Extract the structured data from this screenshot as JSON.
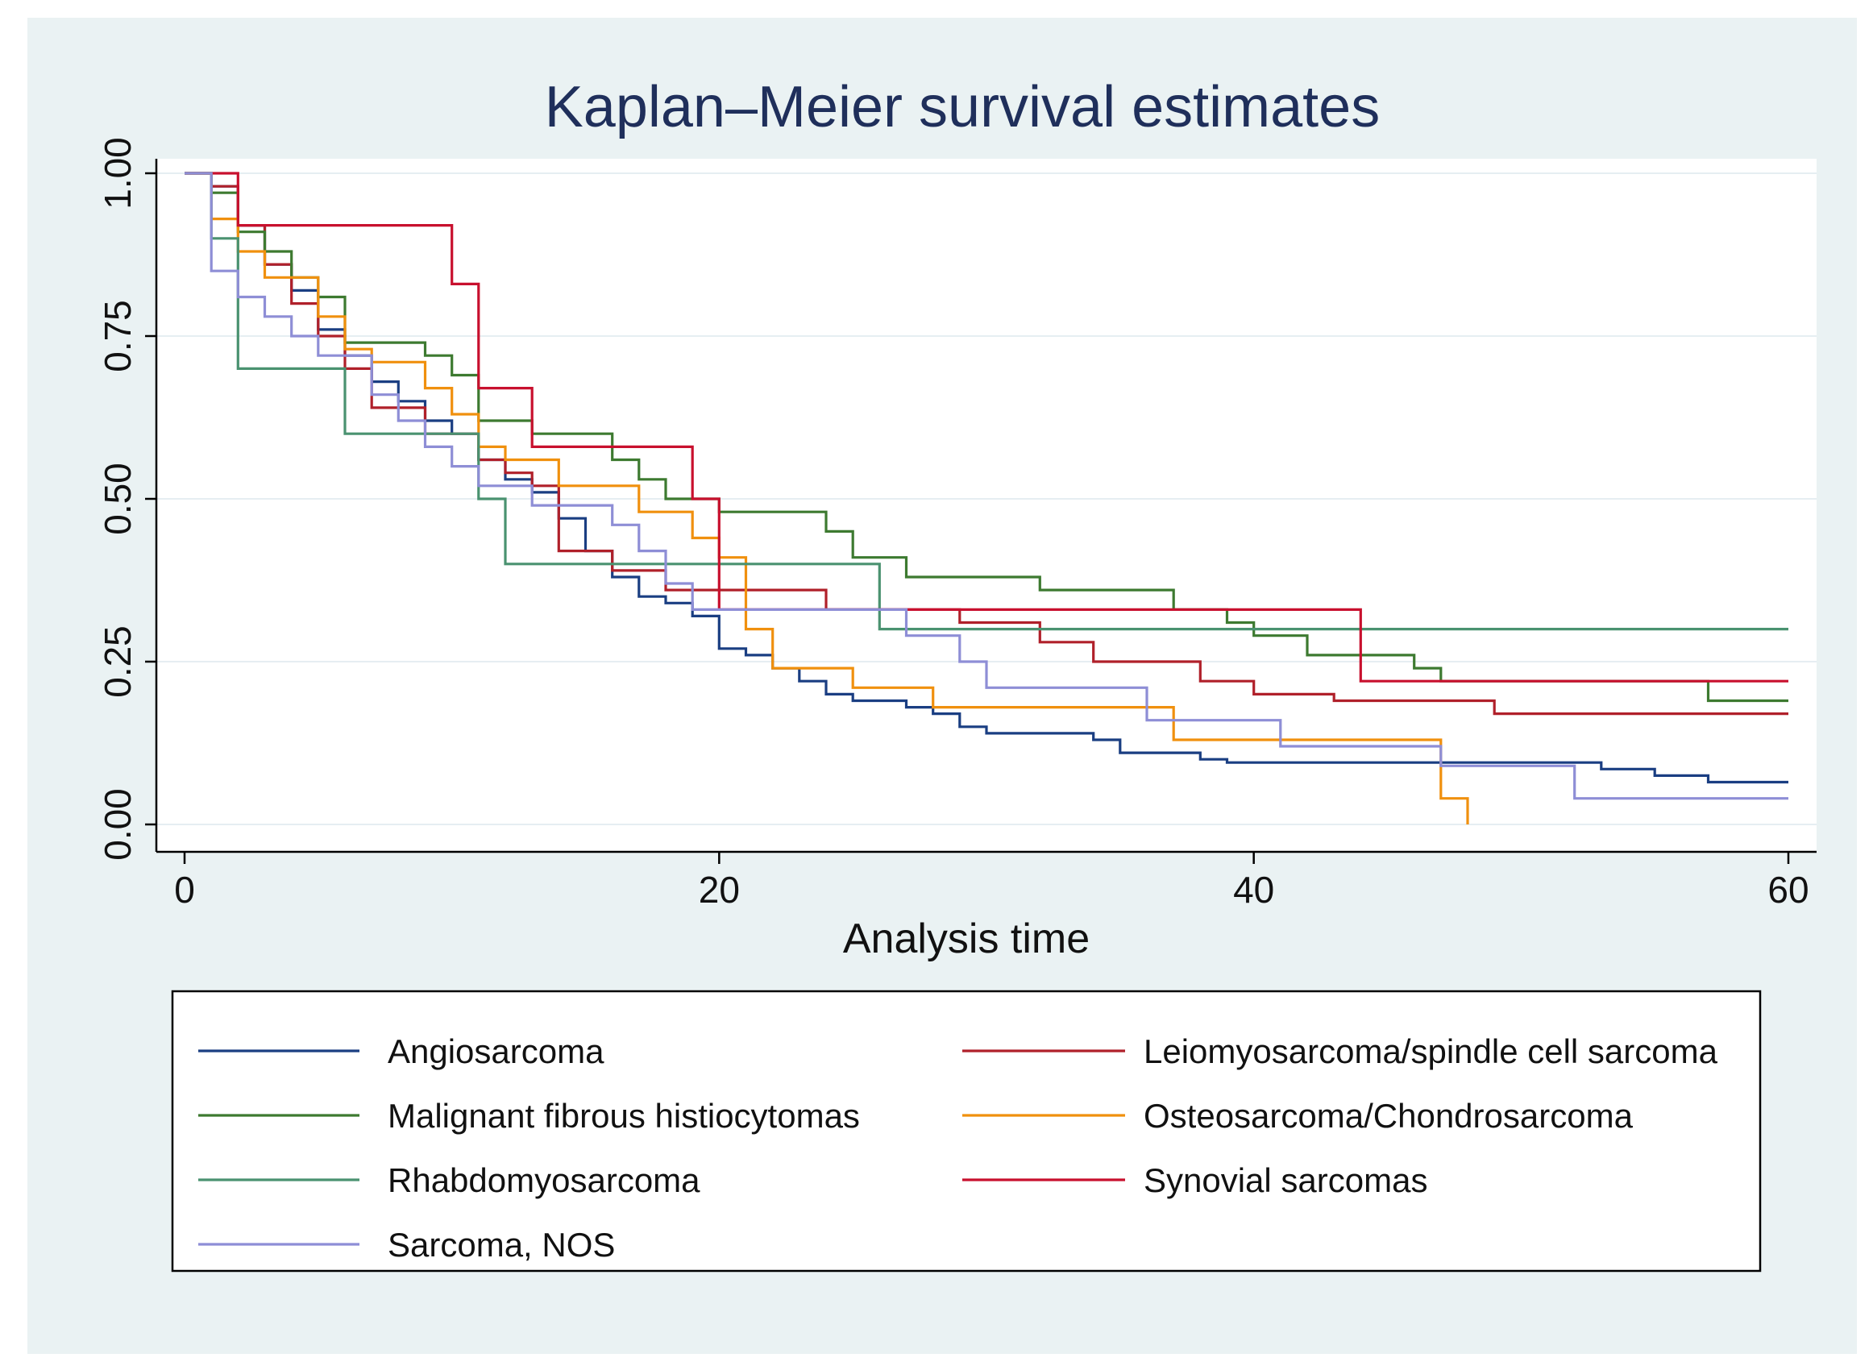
{
  "chart_data": {
    "type": "line",
    "subtype": "step",
    "title": "Kaplan–Meier survival estimates",
    "xlabel": "Analysis time",
    "ylabel": "",
    "xlim": [
      0,
      60
    ],
    "ylim": [
      0,
      1
    ],
    "x_ticks": [
      0,
      20,
      40,
      60
    ],
    "y_ticks": [
      0,
      0.25,
      0.5,
      0.75,
      1
    ],
    "x_tick_labels": [
      "0",
      "20",
      "40",
      "60"
    ],
    "y_tick_labels": [
      "0.00",
      "0.25",
      "0.50",
      "0.75",
      "1.00"
    ],
    "grid": true,
    "legend_position": "bottom",
    "legend_columns": 2,
    "series": [
      {
        "name": "Angiosarcoma",
        "color": "#1a3e82",
        "points": [
          [
            0,
            1
          ],
          [
            1,
            1
          ],
          [
            1,
            0.98
          ],
          [
            2,
            0.98
          ],
          [
            2,
            0.92
          ],
          [
            3,
            0.92
          ],
          [
            3,
            0.86
          ],
          [
            4,
            0.86
          ],
          [
            4,
            0.82
          ],
          [
            5,
            0.82
          ],
          [
            5,
            0.76
          ],
          [
            6,
            0.76
          ],
          [
            6,
            0.72
          ],
          [
            7,
            0.72
          ],
          [
            7,
            0.68
          ],
          [
            8,
            0.68
          ],
          [
            8,
            0.65
          ],
          [
            9,
            0.65
          ],
          [
            9,
            0.62
          ],
          [
            10,
            0.62
          ],
          [
            10,
            0.6
          ],
          [
            11,
            0.6
          ],
          [
            11,
            0.56
          ],
          [
            12,
            0.56
          ],
          [
            12,
            0.53
          ],
          [
            13,
            0.53
          ],
          [
            13,
            0.51
          ],
          [
            14,
            0.51
          ],
          [
            14,
            0.47
          ],
          [
            15,
            0.47
          ],
          [
            15,
            0.42
          ],
          [
            16,
            0.42
          ],
          [
            16,
            0.38
          ],
          [
            17,
            0.38
          ],
          [
            17,
            0.35
          ],
          [
            18,
            0.35
          ],
          [
            18,
            0.34
          ],
          [
            19,
            0.34
          ],
          [
            19,
            0.32
          ],
          [
            20,
            0.32
          ],
          [
            20,
            0.27
          ],
          [
            21,
            0.27
          ],
          [
            21,
            0.26
          ],
          [
            22,
            0.26
          ],
          [
            22,
            0.24
          ],
          [
            23,
            0.24
          ],
          [
            23,
            0.22
          ],
          [
            24,
            0.22
          ],
          [
            24,
            0.2
          ],
          [
            25,
            0.2
          ],
          [
            25,
            0.19
          ],
          [
            27,
            0.19
          ],
          [
            27,
            0.18
          ],
          [
            28,
            0.18
          ],
          [
            28,
            0.17
          ],
          [
            29,
            0.17
          ],
          [
            29,
            0.15
          ],
          [
            30,
            0.15
          ],
          [
            30,
            0.14
          ],
          [
            34,
            0.14
          ],
          [
            34,
            0.13
          ],
          [
            35,
            0.13
          ],
          [
            35,
            0.11
          ],
          [
            38,
            0.11
          ],
          [
            38,
            0.1
          ],
          [
            39,
            0.1
          ],
          [
            39,
            0.095
          ],
          [
            53,
            0.095
          ],
          [
            53,
            0.085
          ],
          [
            55,
            0.085
          ],
          [
            55,
            0.075
          ],
          [
            57,
            0.075
          ],
          [
            57,
            0.065
          ],
          [
            60,
            0.065
          ]
        ]
      },
      {
        "name": "Leiomyosarcoma/spindle cell sarcoma",
        "color": "#b0202a",
        "points": [
          [
            0,
            1
          ],
          [
            1,
            1
          ],
          [
            1,
            0.98
          ],
          [
            2,
            0.98
          ],
          [
            2,
            0.92
          ],
          [
            3,
            0.92
          ],
          [
            3,
            0.86
          ],
          [
            4,
            0.86
          ],
          [
            4,
            0.8
          ],
          [
            5,
            0.8
          ],
          [
            5,
            0.75
          ],
          [
            6,
            0.75
          ],
          [
            6,
            0.7
          ],
          [
            7,
            0.7
          ],
          [
            7,
            0.64
          ],
          [
            9,
            0.64
          ],
          [
            9,
            0.6
          ],
          [
            11,
            0.6
          ],
          [
            11,
            0.56
          ],
          [
            12,
            0.56
          ],
          [
            12,
            0.54
          ],
          [
            13,
            0.54
          ],
          [
            13,
            0.52
          ],
          [
            14,
            0.52
          ],
          [
            14,
            0.42
          ],
          [
            16,
            0.42
          ],
          [
            16,
            0.39
          ],
          [
            18,
            0.39
          ],
          [
            18,
            0.36
          ],
          [
            24,
            0.36
          ],
          [
            24,
            0.33
          ],
          [
            29,
            0.33
          ],
          [
            29,
            0.31
          ],
          [
            32,
            0.31
          ],
          [
            32,
            0.28
          ],
          [
            34,
            0.28
          ],
          [
            34,
            0.25
          ],
          [
            38,
            0.25
          ],
          [
            38,
            0.22
          ],
          [
            40,
            0.22
          ],
          [
            40,
            0.2
          ],
          [
            43,
            0.2
          ],
          [
            43,
            0.19
          ],
          [
            49,
            0.19
          ],
          [
            49,
            0.17
          ],
          [
            60,
            0.17
          ]
        ]
      },
      {
        "name": "Malignant fibrous histiocytomas",
        "color": "#3d7a30",
        "points": [
          [
            0,
            1
          ],
          [
            1,
            1
          ],
          [
            1,
            0.97
          ],
          [
            2,
            0.97
          ],
          [
            2,
            0.91
          ],
          [
            3,
            0.91
          ],
          [
            3,
            0.88
          ],
          [
            4,
            0.88
          ],
          [
            4,
            0.84
          ],
          [
            5,
            0.84
          ],
          [
            5,
            0.81
          ],
          [
            6,
            0.81
          ],
          [
            6,
            0.74
          ],
          [
            9,
            0.74
          ],
          [
            9,
            0.72
          ],
          [
            10,
            0.72
          ],
          [
            10,
            0.69
          ],
          [
            11,
            0.69
          ],
          [
            11,
            0.62
          ],
          [
            13,
            0.62
          ],
          [
            13,
            0.6
          ],
          [
            16,
            0.6
          ],
          [
            16,
            0.56
          ],
          [
            17,
            0.56
          ],
          [
            17,
            0.53
          ],
          [
            18,
            0.53
          ],
          [
            18,
            0.5
          ],
          [
            20,
            0.5
          ],
          [
            20,
            0.48
          ],
          [
            24,
            0.48
          ],
          [
            24,
            0.45
          ],
          [
            25,
            0.45
          ],
          [
            25,
            0.41
          ],
          [
            27,
            0.41
          ],
          [
            27,
            0.38
          ],
          [
            32,
            0.38
          ],
          [
            32,
            0.36
          ],
          [
            37,
            0.36
          ],
          [
            37,
            0.33
          ],
          [
            39,
            0.33
          ],
          [
            39,
            0.31
          ],
          [
            40,
            0.31
          ],
          [
            40,
            0.29
          ],
          [
            42,
            0.29
          ],
          [
            42,
            0.26
          ],
          [
            46,
            0.26
          ],
          [
            46,
            0.24
          ],
          [
            47,
            0.24
          ],
          [
            47,
            0.22
          ],
          [
            57,
            0.22
          ],
          [
            57,
            0.19
          ],
          [
            60,
            0.19
          ]
        ]
      },
      {
        "name": "Osteosarcoma/Chondrosarcoma",
        "color": "#f0900e",
        "points": [
          [
            0,
            1
          ],
          [
            1,
            1
          ],
          [
            1,
            0.93
          ],
          [
            2,
            0.93
          ],
          [
            2,
            0.88
          ],
          [
            3,
            0.88
          ],
          [
            3,
            0.84
          ],
          [
            5,
            0.84
          ],
          [
            5,
            0.78
          ],
          [
            6,
            0.78
          ],
          [
            6,
            0.73
          ],
          [
            7,
            0.73
          ],
          [
            7,
            0.71
          ],
          [
            9,
            0.71
          ],
          [
            9,
            0.67
          ],
          [
            10,
            0.67
          ],
          [
            10,
            0.63
          ],
          [
            11,
            0.63
          ],
          [
            11,
            0.58
          ],
          [
            12,
            0.58
          ],
          [
            12,
            0.56
          ],
          [
            14,
            0.56
          ],
          [
            14,
            0.52
          ],
          [
            17,
            0.52
          ],
          [
            17,
            0.48
          ],
          [
            19,
            0.48
          ],
          [
            19,
            0.44
          ],
          [
            20,
            0.44
          ],
          [
            20,
            0.41
          ],
          [
            21,
            0.41
          ],
          [
            21,
            0.3
          ],
          [
            22,
            0.3
          ],
          [
            22,
            0.24
          ],
          [
            25,
            0.24
          ],
          [
            25,
            0.21
          ],
          [
            28,
            0.21
          ],
          [
            28,
            0.18
          ],
          [
            37,
            0.18
          ],
          [
            37,
            0.13
          ],
          [
            47,
            0.13
          ],
          [
            47,
            0.04
          ],
          [
            48,
            0.04
          ],
          [
            48,
            0
          ]
        ]
      },
      {
        "name": "Rhabdomyosarcoma",
        "color": "#4a9270",
        "points": [
          [
            0,
            1
          ],
          [
            1,
            1
          ],
          [
            1,
            0.9
          ],
          [
            2,
            0.9
          ],
          [
            2,
            0.7
          ],
          [
            6,
            0.7
          ],
          [
            6,
            0.6
          ],
          [
            11,
            0.6
          ],
          [
            11,
            0.5
          ],
          [
            12,
            0.5
          ],
          [
            12,
            0.4
          ],
          [
            26,
            0.4
          ],
          [
            26,
            0.3
          ],
          [
            60,
            0.3
          ]
        ]
      },
      {
        "name": "Synovial sarcomas",
        "color": "#c8102e",
        "points": [
          [
            0,
            1
          ],
          [
            2,
            1
          ],
          [
            2,
            0.92
          ],
          [
            10,
            0.92
          ],
          [
            10,
            0.83
          ],
          [
            11,
            0.83
          ],
          [
            11,
            0.67
          ],
          [
            13,
            0.67
          ],
          [
            13,
            0.58
          ],
          [
            19,
            0.58
          ],
          [
            19,
            0.5
          ],
          [
            20,
            0.5
          ],
          [
            20,
            0.33
          ],
          [
            44,
            0.33
          ],
          [
            44,
            0.22
          ],
          [
            60,
            0.22
          ]
        ]
      },
      {
        "name": "Sarcoma, NOS",
        "color": "#8e8ed6",
        "points": [
          [
            0,
            1
          ],
          [
            1,
            1
          ],
          [
            1,
            0.85
          ],
          [
            2,
            0.85
          ],
          [
            2,
            0.81
          ],
          [
            3,
            0.81
          ],
          [
            3,
            0.78
          ],
          [
            4,
            0.78
          ],
          [
            4,
            0.75
          ],
          [
            5,
            0.75
          ],
          [
            5,
            0.72
          ],
          [
            7,
            0.72
          ],
          [
            7,
            0.66
          ],
          [
            8,
            0.66
          ],
          [
            8,
            0.62
          ],
          [
            9,
            0.62
          ],
          [
            9,
            0.58
          ],
          [
            10,
            0.58
          ],
          [
            10,
            0.55
          ],
          [
            11,
            0.55
          ],
          [
            11,
            0.52
          ],
          [
            13,
            0.52
          ],
          [
            13,
            0.49
          ],
          [
            16,
            0.49
          ],
          [
            16,
            0.46
          ],
          [
            17,
            0.46
          ],
          [
            17,
            0.42
          ],
          [
            18,
            0.42
          ],
          [
            18,
            0.37
          ],
          [
            19,
            0.37
          ],
          [
            19,
            0.33
          ],
          [
            27,
            0.33
          ],
          [
            27,
            0.29
          ],
          [
            29,
            0.29
          ],
          [
            29,
            0.25
          ],
          [
            30,
            0.25
          ],
          [
            30,
            0.21
          ],
          [
            36,
            0.21
          ],
          [
            36,
            0.16
          ],
          [
            41,
            0.16
          ],
          [
            41,
            0.12
          ],
          [
            47,
            0.12
          ],
          [
            47,
            0.09
          ],
          [
            52,
            0.09
          ],
          [
            52,
            0.04
          ],
          [
            60,
            0.04
          ]
        ]
      }
    ]
  }
}
